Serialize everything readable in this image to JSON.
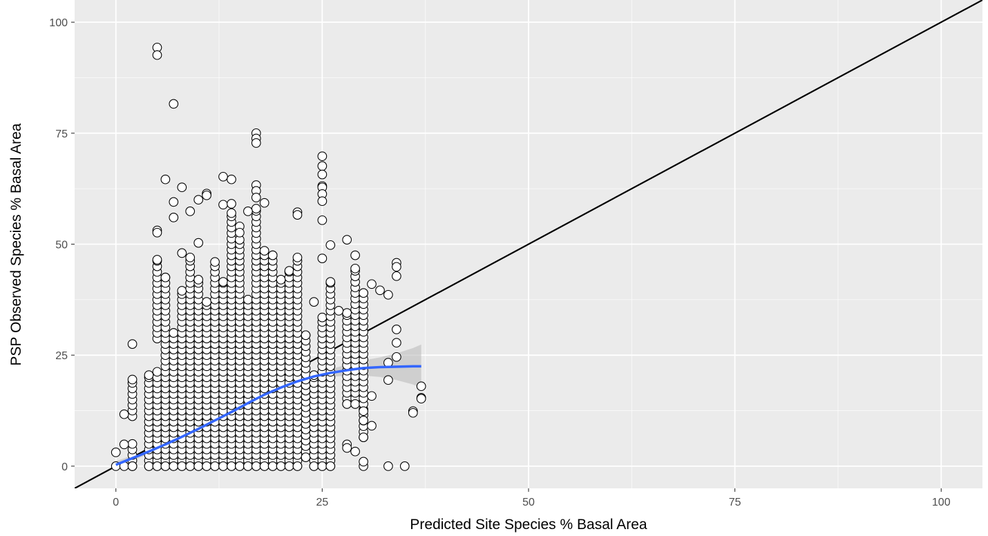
{
  "chart_data": {
    "type": "scatter",
    "title": "",
    "xlabel": "Predicted Site Species % Basal Area",
    "ylabel": "PSP Observed Species % Basal Area",
    "xlim": [
      -5,
      105
    ],
    "ylim": [
      -5,
      105
    ],
    "x_ticks": [
      "0",
      "25",
      "50",
      "75",
      "100"
    ],
    "y_ticks": [
      "0",
      "25",
      "50",
      "75",
      "100"
    ],
    "grid": true,
    "legend": "none",
    "colors": {
      "panel": "#ebebeb",
      "grid_major": "#ffffff",
      "point_fill": "#ffffff",
      "point_stroke": "#000000",
      "smooth": "#3366ff",
      "ribbon": "#bdbdbd",
      "reference_line": "#000000"
    },
    "reference_line": {
      "slope": 1,
      "intercept": 0
    },
    "smooth": {
      "x": [
        0,
        2,
        4,
        6,
        8,
        10,
        12,
        14,
        16,
        18,
        20,
        22,
        24,
        26,
        28,
        30,
        32,
        34,
        36,
        37
      ],
      "y": [
        0.3,
        1.8,
        3.3,
        4.9,
        6.6,
        8.4,
        10.3,
        12.2,
        14.2,
        16.1,
        17.7,
        19.1,
        20.2,
        21.0,
        21.6,
        22.1,
        22.3,
        22.4,
        22.5,
        22.5
      ],
      "ymin": [
        -0.5,
        1.2,
        2.8,
        4.5,
        6.2,
        8.0,
        9.9,
        11.8,
        13.8,
        15.7,
        17.2,
        18.5,
        19.5,
        20.1,
        20.4,
        20.4,
        20.1,
        19.4,
        18.4,
        17.6
      ],
      "ymax": [
        1.1,
        2.4,
        3.8,
        5.3,
        7.0,
        8.8,
        10.7,
        12.6,
        14.6,
        16.5,
        18.2,
        19.7,
        20.9,
        21.9,
        22.8,
        23.8,
        24.5,
        25.4,
        26.6,
        27.4
      ]
    },
    "outliers": [
      {
        "x": 5,
        "y": 94.3
      },
      {
        "x": 5,
        "y": 92.6
      },
      {
        "x": 7,
        "y": 81.6
      },
      {
        "x": 17,
        "y": 75
      },
      {
        "x": 17,
        "y": 73.8
      },
      {
        "x": 17,
        "y": 72.8
      },
      {
        "x": 13,
        "y": 65.2
      },
      {
        "x": 14,
        "y": 64.6
      },
      {
        "x": 6,
        "y": 64.6
      },
      {
        "x": 8,
        "y": 62.8
      },
      {
        "x": 11,
        "y": 61.4
      },
      {
        "x": 11,
        "y": 61
      },
      {
        "x": 10,
        "y": 60
      },
      {
        "x": 7,
        "y": 59.5
      },
      {
        "x": 13,
        "y": 58.9
      },
      {
        "x": 14,
        "y": 59.1
      },
      {
        "x": 9,
        "y": 57.4
      },
      {
        "x": 7,
        "y": 56
      },
      {
        "x": 22,
        "y": 57.2
      },
      {
        "x": 22,
        "y": 56.6
      },
      {
        "x": 25,
        "y": 69.8
      },
      {
        "x": 25,
        "y": 67.6
      },
      {
        "x": 25,
        "y": 65.7
      },
      {
        "x": 25,
        "y": 63.1
      },
      {
        "x": 25,
        "y": 62.8
      },
      {
        "x": 25,
        "y": 61.3
      },
      {
        "x": 25,
        "y": 59.7
      },
      {
        "x": 25,
        "y": 55.4
      },
      {
        "x": 26,
        "y": 49.8
      },
      {
        "x": 28,
        "y": 51
      },
      {
        "x": 5,
        "y": 53.1
      },
      {
        "x": 5,
        "y": 52.6
      },
      {
        "x": 10,
        "y": 50.3
      },
      {
        "x": 8,
        "y": 48
      },
      {
        "x": 29,
        "y": 47.5
      },
      {
        "x": 34,
        "y": 45.8
      },
      {
        "x": 34,
        "y": 44.9
      },
      {
        "x": 34,
        "y": 42.8
      },
      {
        "x": 18,
        "y": 59.3
      },
      {
        "x": 15,
        "y": 54
      },
      {
        "x": 15,
        "y": 52.6
      },
      {
        "x": 16,
        "y": 57.4
      },
      {
        "x": 17,
        "y": 63.3
      },
      {
        "x": 17,
        "y": 62
      },
      {
        "x": 17,
        "y": 60.5
      },
      {
        "x": 24,
        "y": 37
      },
      {
        "x": 25,
        "y": 46.8
      },
      {
        "x": 27,
        "y": 35
      },
      {
        "x": 31,
        "y": 41
      },
      {
        "x": 32,
        "y": 39.6
      },
      {
        "x": 33,
        "y": 38.6
      },
      {
        "x": 34,
        "y": 30.8
      },
      {
        "x": 34,
        "y": 27.8
      },
      {
        "x": 34,
        "y": 24.6
      },
      {
        "x": 33,
        "y": 23.3
      },
      {
        "x": 33,
        "y": 19.4
      },
      {
        "x": 37,
        "y": 18
      },
      {
        "x": 37,
        "y": 15.4
      },
      {
        "x": 37,
        "y": 15.2
      },
      {
        "x": 36,
        "y": 12.4
      },
      {
        "x": 36,
        "y": 12
      },
      {
        "x": 33,
        "y": 0
      },
      {
        "x": 35,
        "y": 0
      },
      {
        "x": 30,
        "y": 0
      },
      {
        "x": 30,
        "y": 1
      },
      {
        "x": 30,
        "y": 12.4
      },
      {
        "x": 30,
        "y": 10.3
      },
      {
        "x": 31,
        "y": 9.1
      },
      {
        "x": 31,
        "y": 15.8
      },
      {
        "x": 28,
        "y": 4.9
      },
      {
        "x": 28,
        "y": 4.1
      },
      {
        "x": 29,
        "y": 3.3
      },
      {
        "x": 2,
        "y": 27.5
      },
      {
        "x": 1,
        "y": 11.7
      },
      {
        "x": 1,
        "y": 4.9
      },
      {
        "x": 0,
        "y": 3.1
      },
      {
        "x": 0,
        "y": 0
      },
      {
        "x": 1,
        "y": 0
      },
      {
        "x": 2,
        "y": 0
      }
    ],
    "columns": [
      {
        "x": 2,
        "y0": 0,
        "y1": 19.5,
        "gap": 8
      },
      {
        "x": 4,
        "y0": 0,
        "y1": 20.5
      },
      {
        "x": 5,
        "y0": 0,
        "y1": 46.5,
        "gap": 25
      },
      {
        "x": 6,
        "y0": 0,
        "y1": 42.5
      },
      {
        "x": 7,
        "y0": 0,
        "y1": 30
      },
      {
        "x": 8,
        "y0": 0,
        "y1": 39.5
      },
      {
        "x": 9,
        "y0": 0,
        "y1": 47
      },
      {
        "x": 10,
        "y0": 0,
        "y1": 42
      },
      {
        "x": 11,
        "y0": 0,
        "y1": 37
      },
      {
        "x": 12,
        "y0": 0,
        "y1": 46
      },
      {
        "x": 13,
        "y0": 0,
        "y1": 41.5
      },
      {
        "x": 14,
        "y0": 0,
        "y1": 57
      },
      {
        "x": 15,
        "y0": 0,
        "y1": 51
      },
      {
        "x": 16,
        "y0": 0,
        "y1": 37.5
      },
      {
        "x": 17,
        "y0": 0,
        "y1": 58
      },
      {
        "x": 18,
        "y0": 0,
        "y1": 48.5
      },
      {
        "x": 19,
        "y0": 0,
        "y1": 47.5
      },
      {
        "x": 20,
        "y0": 0,
        "y1": 42
      },
      {
        "x": 21,
        "y0": 0,
        "y1": 44
      },
      {
        "x": 22,
        "y0": 0,
        "y1": 47
      },
      {
        "x": 23,
        "y0": 2,
        "y1": 29.5
      },
      {
        "x": 24,
        "y0": 0,
        "y1": 20.5
      },
      {
        "x": 25,
        "y0": 0,
        "y1": 33.5
      },
      {
        "x": 26,
        "y0": 0,
        "y1": 41.5
      },
      {
        "x": 28,
        "y0": 14,
        "y1": 34.5
      },
      {
        "x": 29,
        "y0": 14,
        "y1": 44.5
      },
      {
        "x": 30,
        "y0": 6.5,
        "y1": 39
      }
    ]
  }
}
